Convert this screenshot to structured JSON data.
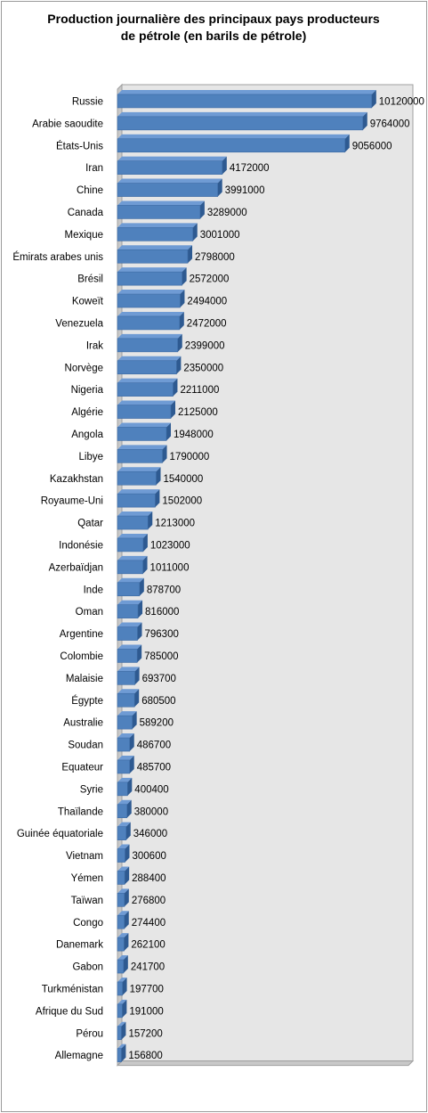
{
  "chart_data": {
    "type": "bar",
    "orientation": "horizontal",
    "title_line1": "Production journalière des principaux pays producteurs",
    "title_line2": "de pétrole (en barils de pétrole)",
    "categories": [
      "Russie",
      "Arabie saoudite",
      "États-Unis",
      "Iran",
      "Chine",
      "Canada",
      "Mexique",
      "Émirats arabes unis",
      "Brésil",
      "Koweït",
      "Venezuela",
      "Irak",
      "Norvège",
      "Nigeria",
      "Algérie",
      "Angola",
      "Libye",
      "Kazakhstan",
      "Royaume-Uni",
      "Qatar",
      "Indonésie",
      "Azerbaïdjan",
      "Inde",
      "Oman",
      "Argentine",
      "Colombie",
      "Malaisie",
      "Égypte",
      "Australie",
      "Soudan",
      "Equateur",
      "Syrie",
      "Thaïlande",
      "Guinée équatoriale",
      "Vietnam",
      "Yémen",
      "Taïwan",
      "Congo",
      "Danemark",
      "Gabon",
      "Turkménistan",
      "Afrique du Sud",
      "Pérou",
      "Allemagne"
    ],
    "values": [
      10120000,
      9764000,
      9056000,
      4172000,
      3991000,
      3289000,
      3001000,
      2798000,
      2572000,
      2494000,
      2472000,
      2399000,
      2350000,
      2211000,
      2125000,
      1948000,
      1790000,
      1540000,
      1502000,
      1213000,
      1023000,
      1011000,
      878700,
      816000,
      796300,
      785000,
      693700,
      680500,
      589200,
      486700,
      485700,
      400400,
      380000,
      346000,
      300600,
      288400,
      276800,
      274400,
      262100,
      241700,
      197700,
      191000,
      157200,
      156800
    ],
    "xlim": [
      0,
      10800000
    ],
    "data_labels": true,
    "legend": "none",
    "grid": false,
    "colors": {
      "bar_front": "#4f81bd",
      "bar_top": "#6f9bd4",
      "bar_end": "#2e5a91",
      "wall": "#e6e6e6",
      "floor": "#c8c8c8",
      "wall_edge": "#a0a0a0"
    }
  }
}
